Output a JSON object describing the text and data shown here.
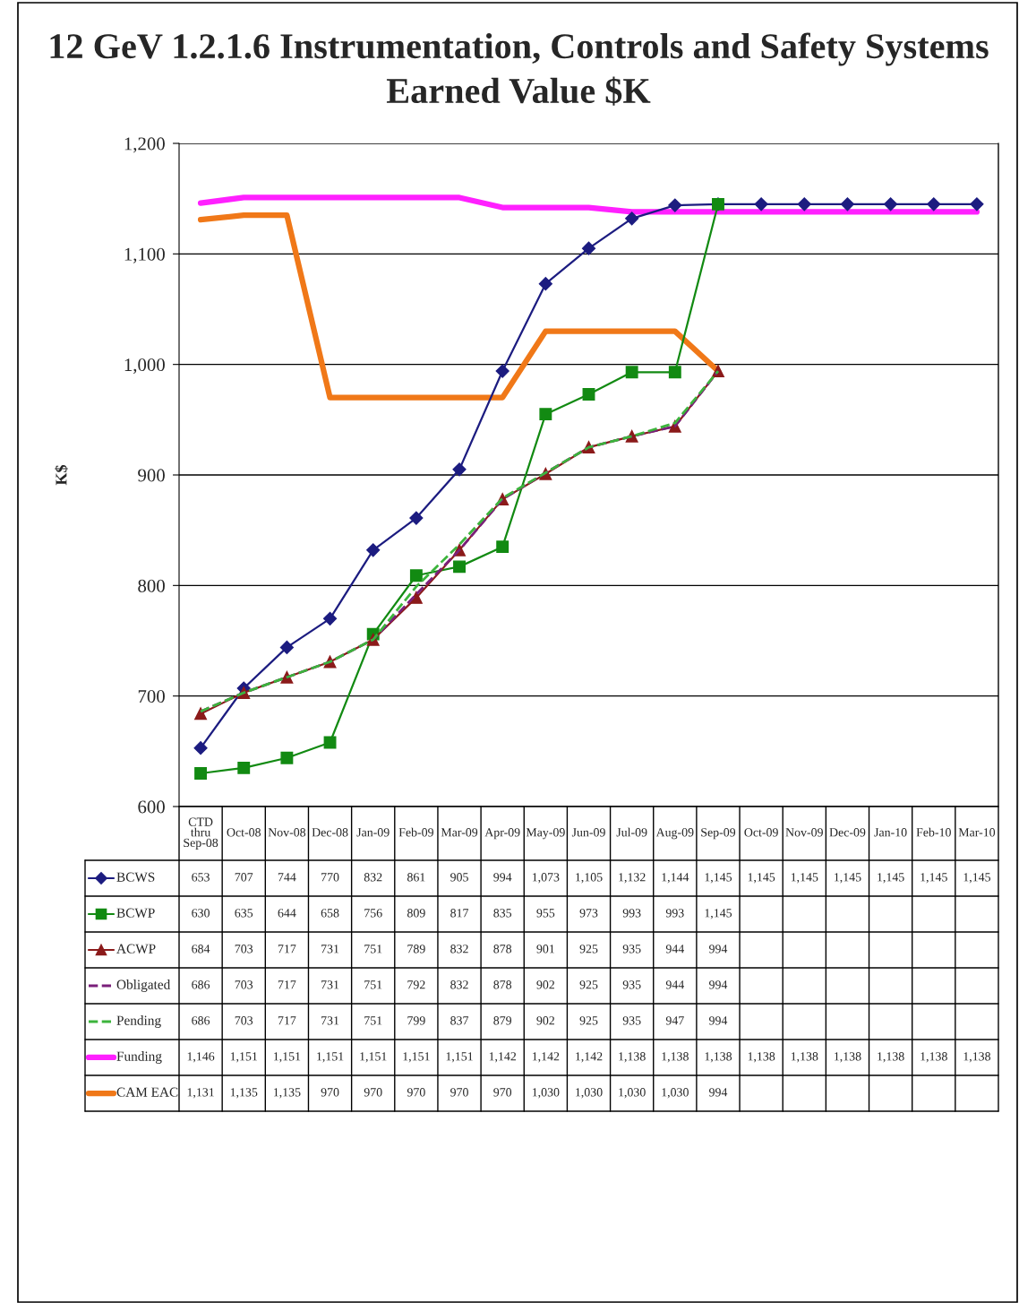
{
  "chart_data": {
    "type": "line",
    "title": "12 GeV 1.2.1.6 Instrumentation, Controls and Safety Systems",
    "subtitle": "Earned Value $K",
    "ylabel": "K$",
    "categories": [
      "CTD thru Sep-08",
      "Oct-08",
      "Nov-08",
      "Dec-08",
      "Jan-09",
      "Feb-09",
      "Mar-09",
      "Apr-09",
      "May-09",
      "Jun-09",
      "Jul-09",
      "Aug-09",
      "Sep-09",
      "Oct-09",
      "Nov-09",
      "Dec-09",
      "Jan-10",
      "Feb-10",
      "Mar-10"
    ],
    "series": [
      {
        "name": "BCWS",
        "color": "#1c1c80",
        "marker": "diamond",
        "line_style": "solid",
        "values": [
          653,
          707,
          744,
          770,
          832,
          861,
          905,
          994,
          1073,
          1105,
          1132,
          1144,
          1145,
          1145,
          1145,
          1145,
          1145,
          1145,
          1145
        ],
        "value_labels": [
          "653",
          "707",
          "744",
          "770",
          "832",
          "861",
          "905",
          "994",
          "1,073",
          "1,105",
          "1,132",
          "1,144",
          "1,145",
          "1,145",
          "1,145",
          "1,145",
          "1,145",
          "1,145",
          "1,145"
        ]
      },
      {
        "name": "BCWP",
        "color": "#128a12",
        "marker": "square",
        "line_style": "solid",
        "values": [
          630,
          635,
          644,
          658,
          756,
          809,
          817,
          835,
          955,
          973,
          993,
          993,
          1145,
          null,
          null,
          null,
          null,
          null,
          null
        ],
        "value_labels": [
          "630",
          "635",
          "644",
          "658",
          "756",
          "809",
          "817",
          "835",
          "955",
          "973",
          "993",
          "993",
          "1,145",
          null,
          null,
          null,
          null,
          null,
          null
        ]
      },
      {
        "name": "ACWP",
        "color": "#8b1a1a",
        "marker": "triangle",
        "line_style": "solid",
        "values": [
          684,
          703,
          717,
          731,
          751,
          789,
          832,
          878,
          901,
          925,
          935,
          944,
          994,
          null,
          null,
          null,
          null,
          null,
          null
        ],
        "value_labels": [
          "684",
          "703",
          "717",
          "731",
          "751",
          "789",
          "832",
          "878",
          "901",
          "925",
          "935",
          "944",
          "994",
          null,
          null,
          null,
          null,
          null,
          null
        ]
      },
      {
        "name": "Obligated",
        "color": "#7a1f7a",
        "marker": "none",
        "line_style": "dashed",
        "values": [
          686,
          703,
          717,
          731,
          751,
          792,
          832,
          878,
          902,
          925,
          935,
          944,
          994,
          null,
          null,
          null,
          null,
          null,
          null
        ],
        "value_labels": [
          "686",
          "703",
          "717",
          "731",
          "751",
          "792",
          "832",
          "878",
          "902",
          "925",
          "935",
          "944",
          "994",
          null,
          null,
          null,
          null,
          null,
          null
        ]
      },
      {
        "name": "Pending",
        "color": "#3cb43c",
        "marker": "none",
        "line_style": "dashed",
        "values": [
          686,
          703,
          717,
          731,
          751,
          799,
          837,
          879,
          902,
          925,
          935,
          947,
          994,
          null,
          null,
          null,
          null,
          null,
          null
        ],
        "value_labels": [
          "686",
          "703",
          "717",
          "731",
          "751",
          "799",
          "837",
          "879",
          "902",
          "925",
          "935",
          "947",
          "994",
          null,
          null,
          null,
          null,
          null,
          null
        ]
      },
      {
        "name": "Funding",
        "color": "#ff20ff",
        "marker": "none",
        "line_style": "solid",
        "values": [
          1146,
          1151,
          1151,
          1151,
          1151,
          1151,
          1151,
          1142,
          1142,
          1142,
          1138,
          1138,
          1138,
          1138,
          1138,
          1138,
          1138,
          1138,
          1138
        ],
        "value_labels": [
          "1,146",
          "1,151",
          "1,151",
          "1,151",
          "1,151",
          "1,151",
          "1,151",
          "1,142",
          "1,142",
          "1,142",
          "1,138",
          "1,138",
          "1,138",
          "1,138",
          "1,138",
          "1,138",
          "1,138",
          "1,138",
          "1,138"
        ]
      },
      {
        "name": "CAM EAC",
        "color": "#f07818",
        "marker": "none",
        "line_style": "solid",
        "values": [
          1131,
          1135,
          1135,
          970,
          970,
          970,
          970,
          970,
          1030,
          1030,
          1030,
          1030,
          994,
          null,
          null,
          null,
          null,
          null,
          null
        ],
        "value_labels": [
          "1,131",
          "1,135",
          "1,135",
          "970",
          "970",
          "970",
          "970",
          "970",
          "1,030",
          "1,030",
          "1,030",
          "1,030",
          "994",
          null,
          null,
          null,
          null,
          null,
          null
        ]
      }
    ],
    "ylim": [
      600,
      1200
    ],
    "yticks": [
      {
        "value": 600,
        "label": "600"
      },
      {
        "value": 700,
        "label": "700"
      },
      {
        "value": 800,
        "label": "800"
      },
      {
        "value": 900,
        "label": "900"
      },
      {
        "value": 1000,
        "label": "1,000"
      },
      {
        "value": 1100,
        "label": "1,100"
      },
      {
        "value": 1200,
        "label": "1,200"
      }
    ],
    "grid": "y",
    "legend": "bottom"
  }
}
